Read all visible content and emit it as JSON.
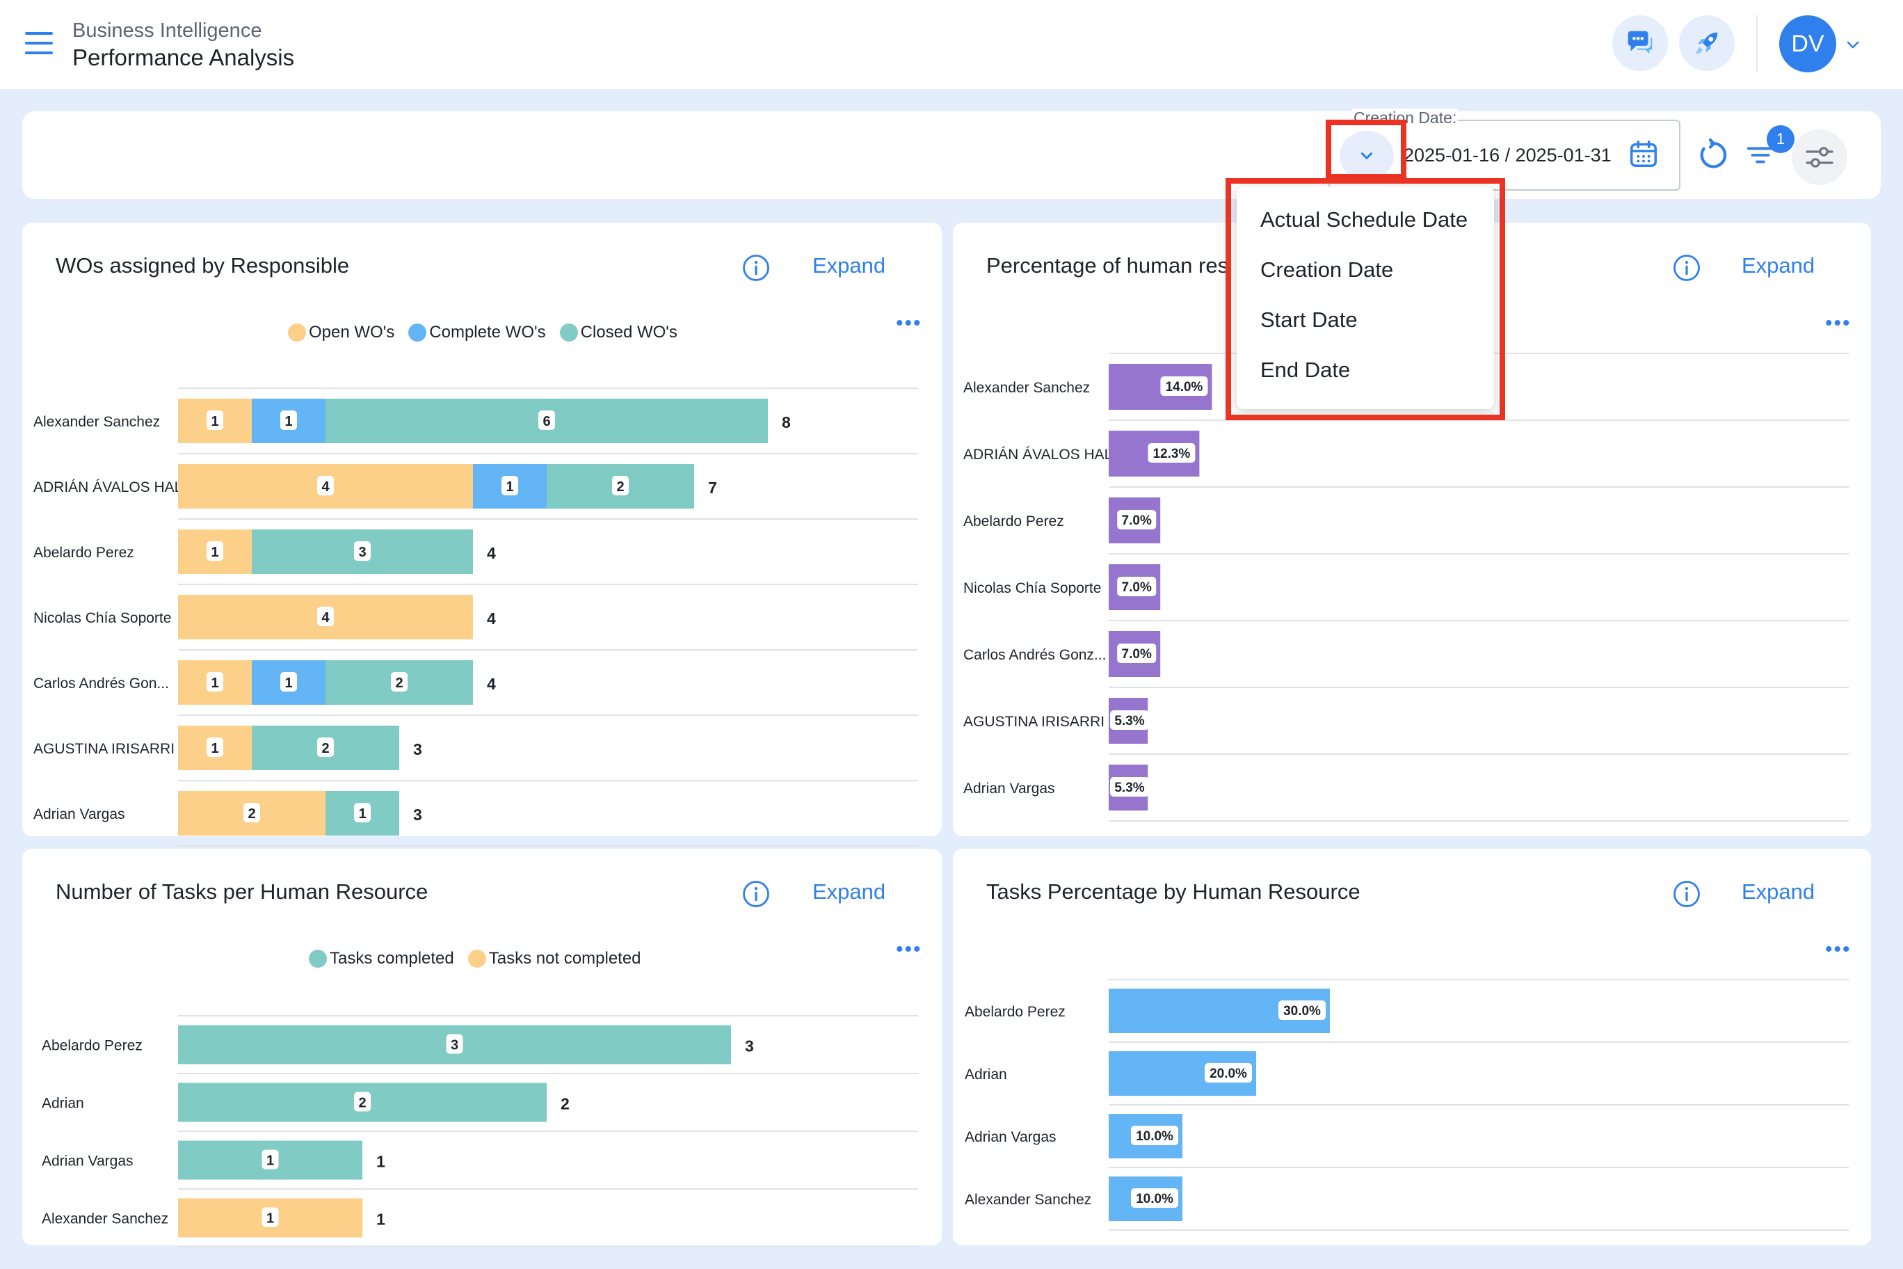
{
  "header": {
    "subtitle": "Business Intelligence",
    "title": "Performance Analysis",
    "avatar_initials": "DV"
  },
  "filter": {
    "date_label": "Creation Date:",
    "date_range": "2025-01-16 / 2025-01-31",
    "filter_count": "1"
  },
  "date_type_menu": {
    "items": [
      "Actual Schedule Date",
      "Creation Date",
      "Start Date",
      "End Date"
    ]
  },
  "colors": {
    "accent": "#2f80ed",
    "open": "#fdd08a",
    "complete": "#64b5f6",
    "closed": "#80cbc4",
    "percent_bar": "#9575cd",
    "highlight": "#ea3323"
  },
  "icons": [
    "menu-icon",
    "chat-icon",
    "rocket-icon",
    "chevron-down-icon",
    "calendar-icon",
    "reset-icon",
    "filter-icon",
    "sliders-icon",
    "info-icon",
    "more-icon"
  ],
  "panels": {
    "wos_by_responsible": {
      "title": "WOs assigned by Responsible",
      "expand": "Expand",
      "legend": [
        "Open WO's",
        "Complete WO's",
        "Closed WO's"
      ]
    },
    "percentage_human": {
      "title": "Percentage of human res",
      "expand": "Expand"
    },
    "tasks_per_resource": {
      "title": "Number of Tasks per Human Resource",
      "expand": "Expand",
      "legend": [
        "Tasks completed",
        "Tasks not completed"
      ]
    },
    "tasks_percentage": {
      "title": "Tasks Percentage by Human Resource",
      "expand": "Expand"
    }
  },
  "chart_data": [
    {
      "type": "bar",
      "orientation": "horizontal",
      "stacked": true,
      "categories": [
        "Alexander Sanchez",
        "ADRIÁN ÁVALOS HAL",
        "Abelardo Perez",
        "Nicolas Chía Soporte",
        "Carlos Andrés Gon...",
        "AGUSTINA IRISARRI",
        "Adrian Vargas"
      ],
      "series": [
        {
          "name": "Open WO's",
          "values": [
            1,
            4,
            1,
            4,
            1,
            1,
            2
          ]
        },
        {
          "name": "Complete WO's",
          "values": [
            1,
            1,
            0,
            0,
            1,
            0,
            0
          ]
        },
        {
          "name": "Closed WO's",
          "values": [
            6,
            2,
            3,
            0,
            2,
            2,
            1
          ]
        }
      ],
      "totals": [
        8,
        7,
        4,
        4,
        4,
        3,
        3
      ]
    },
    {
      "type": "bar",
      "orientation": "horizontal",
      "categories": [
        "Alexander Sanchez",
        "ADRIÁN ÁVALOS HAL",
        "Abelardo Perez",
        "Nicolas Chía Soporte",
        "Carlos Andrés Gonz...",
        "AGUSTINA IRISARRI",
        "Adrian Vargas"
      ],
      "values": [
        14.0,
        12.3,
        7.0,
        7.0,
        7.0,
        5.3,
        5.3
      ],
      "labels": [
        "14.0%",
        "12.3%",
        "7.0%",
        "7.0%",
        "7.0%",
        "5.3%",
        "5.3%"
      ]
    },
    {
      "type": "bar",
      "orientation": "horizontal",
      "stacked": true,
      "categories": [
        "Abelardo Perez",
        "Adrian",
        "Adrian Vargas",
        "Alexander Sanchez"
      ],
      "series": [
        {
          "name": "Tasks completed",
          "values": [
            3,
            2,
            1,
            0
          ]
        },
        {
          "name": "Tasks not completed",
          "values": [
            0,
            0,
            0,
            1
          ]
        }
      ],
      "totals": [
        3,
        2,
        1,
        1
      ]
    },
    {
      "type": "bar",
      "orientation": "horizontal",
      "categories": [
        "Abelardo Perez",
        "Adrian",
        "Adrian Vargas",
        "Alexander Sanchez"
      ],
      "values": [
        30.0,
        20.0,
        10.0,
        10.0
      ],
      "labels": [
        "30.0%",
        "20.0%",
        "10.0%",
        "10.0%"
      ]
    }
  ]
}
